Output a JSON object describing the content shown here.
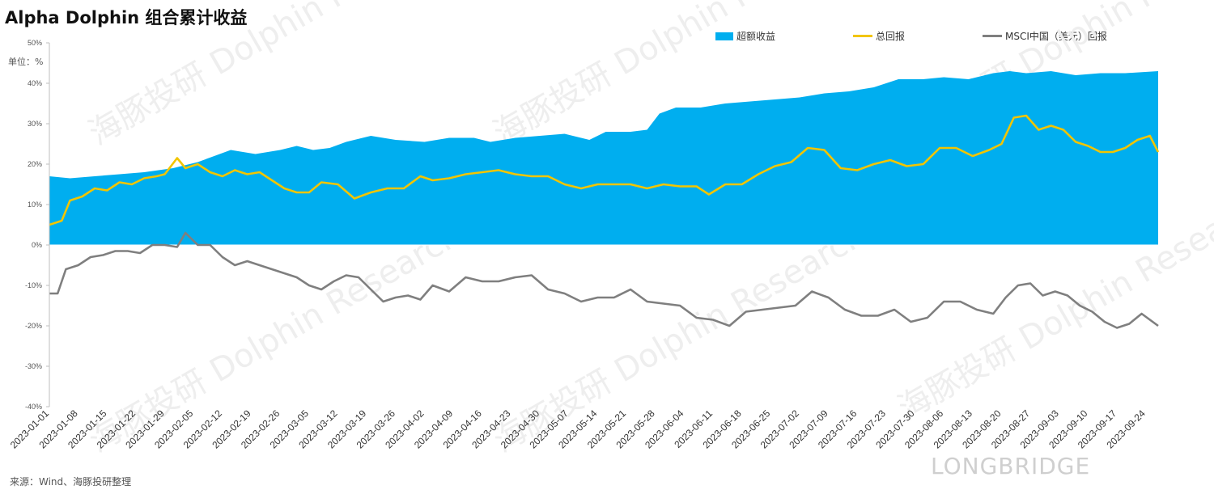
{
  "title": "Alpha Dolphin 组合累计收益",
  "unit_label": "单位：%",
  "source": "来源：Wind、海豚投研整理",
  "brand": "LONGBRIDGE",
  "watermark": "海豚投研 Dolphin Research",
  "colors": {
    "excess": "#00AEEF",
    "total": "#F2C500",
    "msci": "#7F7F7F"
  },
  "chart_data": {
    "type": "area",
    "title": "Alpha Dolphin 组合累计收益",
    "ylabel": "单位：%",
    "ylim": [
      -40,
      50
    ],
    "yticks": [
      "50%",
      "40%",
      "30%",
      "20%",
      "10%",
      "0%",
      "-10%",
      "-20%",
      "-30%",
      "-40%"
    ],
    "legend_position": "top",
    "x_tick_labels": [
      "2023-01-01",
      "2023-01-08",
      "2023-01-15",
      "2023-01-22",
      "2023-01-29",
      "2023-02-05",
      "2023-02-12",
      "2023-02-19",
      "2023-02-26",
      "2023-03-05",
      "2023-03-12",
      "2023-03-19",
      "2023-03-26",
      "2023-04-02",
      "2023-04-09",
      "2023-04-16",
      "2023-04-23",
      "2023-04-30",
      "2023-05-07",
      "2023-05-14",
      "2023-05-21",
      "2023-05-28",
      "2023-06-04",
      "2023-06-11",
      "2023-06-18",
      "2023-06-25",
      "2023-07-02",
      "2023-07-09",
      "2023-07-16",
      "2023-07-23",
      "2023-07-30",
      "2023-08-06",
      "2023-08-13",
      "2023-08-20",
      "2023-08-27",
      "2023-09-03",
      "2023-09-10",
      "2023-09-17",
      "2023-09-24"
    ],
    "x_range": [
      "2023-01-01",
      "2023-09-27"
    ],
    "series": [
      {
        "name": "超额收益",
        "kind": "area",
        "points": [
          [
            "2023-01-01",
            17
          ],
          [
            "2023-01-06",
            16.5
          ],
          [
            "2023-01-12",
            17
          ],
          [
            "2023-01-18",
            17.5
          ],
          [
            "2023-01-24",
            18
          ],
          [
            "2023-01-31",
            19
          ],
          [
            "2023-02-06",
            20.5
          ],
          [
            "2023-02-10",
            22
          ],
          [
            "2023-02-14",
            23.5
          ],
          [
            "2023-02-20",
            22.5
          ],
          [
            "2023-02-26",
            23.5
          ],
          [
            "2023-03-02",
            24.5
          ],
          [
            "2023-03-06",
            23.5
          ],
          [
            "2023-03-10",
            24
          ],
          [
            "2023-03-14",
            25.5
          ],
          [
            "2023-03-20",
            27
          ],
          [
            "2023-03-26",
            26
          ],
          [
            "2023-04-02",
            25.5
          ],
          [
            "2023-04-08",
            26.5
          ],
          [
            "2023-04-14",
            26.5
          ],
          [
            "2023-04-18",
            25.5
          ],
          [
            "2023-04-24",
            26.5
          ],
          [
            "2023-04-30",
            27
          ],
          [
            "2023-05-06",
            27.5
          ],
          [
            "2023-05-12",
            26
          ],
          [
            "2023-05-16",
            28
          ],
          [
            "2023-05-22",
            28
          ],
          [
            "2023-05-26",
            28.5
          ],
          [
            "2023-05-29",
            32.5
          ],
          [
            "2023-06-02",
            34
          ],
          [
            "2023-06-08",
            34
          ],
          [
            "2023-06-14",
            35
          ],
          [
            "2023-06-20",
            35.5
          ],
          [
            "2023-06-26",
            36
          ],
          [
            "2023-07-02",
            36.5
          ],
          [
            "2023-07-08",
            37.5
          ],
          [
            "2023-07-14",
            38
          ],
          [
            "2023-07-20",
            39
          ],
          [
            "2023-07-26",
            41
          ],
          [
            "2023-08-01",
            41
          ],
          [
            "2023-08-06",
            41.5
          ],
          [
            "2023-08-12",
            41
          ],
          [
            "2023-08-18",
            42.5
          ],
          [
            "2023-08-22",
            43
          ],
          [
            "2023-08-26",
            42.5
          ],
          [
            "2023-09-01",
            43
          ],
          [
            "2023-09-07",
            42
          ],
          [
            "2023-09-13",
            42.5
          ],
          [
            "2023-09-19",
            42.5
          ],
          [
            "2023-09-27",
            43
          ]
        ]
      },
      {
        "name": "总回报",
        "kind": "line",
        "points": [
          [
            "2023-01-01",
            5
          ],
          [
            "2023-01-04",
            6
          ],
          [
            "2023-01-06",
            11
          ],
          [
            "2023-01-09",
            12
          ],
          [
            "2023-01-12",
            14
          ],
          [
            "2023-01-15",
            13.5
          ],
          [
            "2023-01-18",
            15.5
          ],
          [
            "2023-01-21",
            15
          ],
          [
            "2023-01-24",
            16.5
          ],
          [
            "2023-01-27",
            17
          ],
          [
            "2023-01-29",
            17.5
          ],
          [
            "2023-02-01",
            21.5
          ],
          [
            "2023-02-03",
            19
          ],
          [
            "2023-02-06",
            20
          ],
          [
            "2023-02-09",
            18
          ],
          [
            "2023-02-12",
            17
          ],
          [
            "2023-02-15",
            18.5
          ],
          [
            "2023-02-18",
            17.5
          ],
          [
            "2023-02-21",
            18
          ],
          [
            "2023-02-24",
            16
          ],
          [
            "2023-02-27",
            14
          ],
          [
            "2023-03-02",
            13
          ],
          [
            "2023-03-05",
            13
          ],
          [
            "2023-03-08",
            15.5
          ],
          [
            "2023-03-12",
            15
          ],
          [
            "2023-03-16",
            11.5
          ],
          [
            "2023-03-20",
            13
          ],
          [
            "2023-03-24",
            14
          ],
          [
            "2023-03-28",
            14
          ],
          [
            "2023-04-01",
            17
          ],
          [
            "2023-04-04",
            16
          ],
          [
            "2023-04-08",
            16.5
          ],
          [
            "2023-04-12",
            17.5
          ],
          [
            "2023-04-16",
            18
          ],
          [
            "2023-04-20",
            18.5
          ],
          [
            "2023-04-24",
            17.5
          ],
          [
            "2023-04-28",
            17
          ],
          [
            "2023-05-02",
            17
          ],
          [
            "2023-05-06",
            15
          ],
          [
            "2023-05-10",
            14
          ],
          [
            "2023-05-14",
            15
          ],
          [
            "2023-05-18",
            15
          ],
          [
            "2023-05-22",
            15
          ],
          [
            "2023-05-26",
            14
          ],
          [
            "2023-05-30",
            15
          ],
          [
            "2023-06-03",
            14.5
          ],
          [
            "2023-06-07",
            14.5
          ],
          [
            "2023-06-10",
            12.5
          ],
          [
            "2023-06-14",
            15
          ],
          [
            "2023-06-18",
            15
          ],
          [
            "2023-06-22",
            17.5
          ],
          [
            "2023-06-26",
            19.5
          ],
          [
            "2023-06-30",
            20.5
          ],
          [
            "2023-07-04",
            24
          ],
          [
            "2023-07-08",
            23.5
          ],
          [
            "2023-07-12",
            19
          ],
          [
            "2023-07-16",
            18.5
          ],
          [
            "2023-07-20",
            20
          ],
          [
            "2023-07-24",
            21
          ],
          [
            "2023-07-28",
            19.5
          ],
          [
            "2023-08-01",
            20
          ],
          [
            "2023-08-05",
            24
          ],
          [
            "2023-08-09",
            24
          ],
          [
            "2023-08-13",
            22
          ],
          [
            "2023-08-17",
            23.5
          ],
          [
            "2023-08-20",
            25
          ],
          [
            "2023-08-23",
            31.5
          ],
          [
            "2023-08-26",
            32
          ],
          [
            "2023-08-29",
            28.5
          ],
          [
            "2023-09-01",
            29.5
          ],
          [
            "2023-09-04",
            28.5
          ],
          [
            "2023-09-07",
            25.5
          ],
          [
            "2023-09-10",
            24.5
          ],
          [
            "2023-09-13",
            23
          ],
          [
            "2023-09-16",
            23
          ],
          [
            "2023-09-19",
            24
          ],
          [
            "2023-09-22",
            26
          ],
          [
            "2023-09-25",
            27
          ],
          [
            "2023-09-27",
            23
          ]
        ]
      },
      {
        "name": "MSCI中国（美元）回报",
        "kind": "line",
        "points": [
          [
            "2023-01-01",
            -12
          ],
          [
            "2023-01-03",
            -12
          ],
          [
            "2023-01-05",
            -6
          ],
          [
            "2023-01-08",
            -5
          ],
          [
            "2023-01-11",
            -3
          ],
          [
            "2023-01-14",
            -2.5
          ],
          [
            "2023-01-17",
            -1.5
          ],
          [
            "2023-01-20",
            -1.5
          ],
          [
            "2023-01-23",
            -2
          ],
          [
            "2023-01-26",
            0
          ],
          [
            "2023-01-29",
            0
          ],
          [
            "2023-02-01",
            -0.5
          ],
          [
            "2023-02-03",
            3
          ],
          [
            "2023-02-06",
            0
          ],
          [
            "2023-02-09",
            0
          ],
          [
            "2023-02-12",
            -3
          ],
          [
            "2023-02-15",
            -5
          ],
          [
            "2023-02-18",
            -4
          ],
          [
            "2023-02-21",
            -5
          ],
          [
            "2023-02-24",
            -6
          ],
          [
            "2023-02-27",
            -7
          ],
          [
            "2023-03-02",
            -8
          ],
          [
            "2023-03-05",
            -10
          ],
          [
            "2023-03-08",
            -11
          ],
          [
            "2023-03-11",
            -9
          ],
          [
            "2023-03-14",
            -7.5
          ],
          [
            "2023-03-17",
            -8
          ],
          [
            "2023-03-20",
            -11
          ],
          [
            "2023-03-23",
            -14
          ],
          [
            "2023-03-26",
            -13
          ],
          [
            "2023-03-29",
            -12.5
          ],
          [
            "2023-04-01",
            -13.5
          ],
          [
            "2023-04-04",
            -10
          ],
          [
            "2023-04-08",
            -11.5
          ],
          [
            "2023-04-12",
            -8
          ],
          [
            "2023-04-16",
            -9
          ],
          [
            "2023-04-20",
            -9
          ],
          [
            "2023-04-24",
            -8
          ],
          [
            "2023-04-28",
            -7.5
          ],
          [
            "2023-05-02",
            -11
          ],
          [
            "2023-05-06",
            -12
          ],
          [
            "2023-05-10",
            -14
          ],
          [
            "2023-05-14",
            -13
          ],
          [
            "2023-05-18",
            -13
          ],
          [
            "2023-05-22",
            -11
          ],
          [
            "2023-05-26",
            -14
          ],
          [
            "2023-05-30",
            -14.5
          ],
          [
            "2023-06-03",
            -15
          ],
          [
            "2023-06-07",
            -18
          ],
          [
            "2023-06-11",
            -18.5
          ],
          [
            "2023-06-15",
            -20
          ],
          [
            "2023-06-19",
            -16.5
          ],
          [
            "2023-06-23",
            -16
          ],
          [
            "2023-06-27",
            -15.5
          ],
          [
            "2023-07-01",
            -15
          ],
          [
            "2023-07-05",
            -11.5
          ],
          [
            "2023-07-09",
            -13
          ],
          [
            "2023-07-13",
            -16
          ],
          [
            "2023-07-17",
            -17.5
          ],
          [
            "2023-07-21",
            -17.5
          ],
          [
            "2023-07-25",
            -16
          ],
          [
            "2023-07-29",
            -19
          ],
          [
            "2023-08-02",
            -18
          ],
          [
            "2023-08-06",
            -14
          ],
          [
            "2023-08-10",
            -14
          ],
          [
            "2023-08-14",
            -16
          ],
          [
            "2023-08-18",
            -17
          ],
          [
            "2023-08-21",
            -13
          ],
          [
            "2023-08-24",
            -10
          ],
          [
            "2023-08-27",
            -9.5
          ],
          [
            "2023-08-30",
            -12.5
          ],
          [
            "2023-09-02",
            -11.5
          ],
          [
            "2023-09-05",
            -12.5
          ],
          [
            "2023-09-08",
            -15
          ],
          [
            "2023-09-11",
            -16.5
          ],
          [
            "2023-09-14",
            -19
          ],
          [
            "2023-09-17",
            -20.5
          ],
          [
            "2023-09-20",
            -19.5
          ],
          [
            "2023-09-23",
            -17
          ],
          [
            "2023-09-25",
            -18.5
          ],
          [
            "2023-09-27",
            -20
          ]
        ]
      }
    ]
  }
}
